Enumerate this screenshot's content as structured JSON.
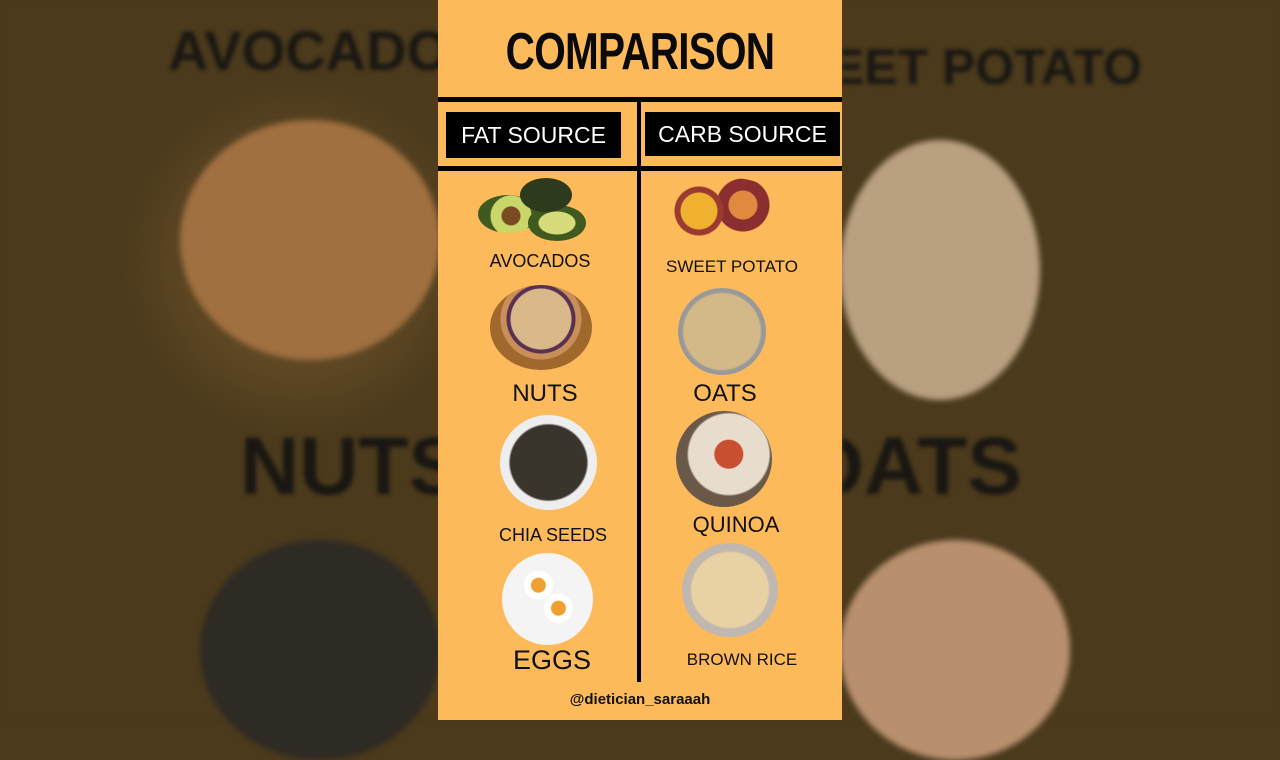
{
  "background_labels": [
    "AVOCADOS",
    "SWEET POTATO",
    "NUTS",
    "OATS"
  ],
  "title": "COMPARISON",
  "columns": [
    {
      "header": "FAT SOURCE",
      "items": [
        "AVOCADOS",
        "NUTS",
        "CHIA SEEDS",
        "EGGS"
      ]
    },
    {
      "header": "CARB SOURCE",
      "items": [
        "SWEET POTATO",
        "OATS",
        "QUINOA",
        "BROWN RICE"
      ]
    }
  ],
  "handle": "@dietician_saraaah",
  "colors": {
    "panel": "#fdba5a",
    "header_box": "#000000",
    "background": "#4b3a1c"
  }
}
